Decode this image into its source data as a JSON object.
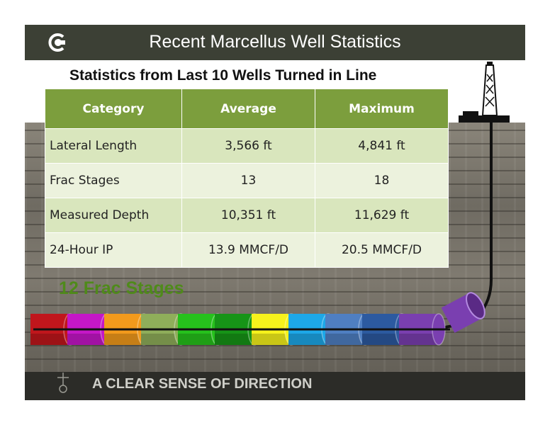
{
  "slide": {
    "title": "Recent Marcellus Well Statistics",
    "subtitle": "Statistics from Last 10 Wells Turned in Line",
    "stage_label": "12 Frac Stages",
    "tagline": "A CLEAR SENSE OF DIRECTION"
  },
  "table": {
    "headers": [
      "Category",
      "Average",
      "Maximum"
    ],
    "rows": [
      {
        "category": "Lateral Length",
        "average": "3,566 ft",
        "maximum": "4,841 ft"
      },
      {
        "category": "Frac Stages",
        "average": "13",
        "maximum": "18"
      },
      {
        "category": "Measured Depth",
        "average": "10,351 ft",
        "maximum": "11,629 ft"
      },
      {
        "category": "24-Hour IP",
        "average": "13.9 MMCF/D",
        "maximum": "20.5 MMCF/D"
      }
    ]
  },
  "colors": {
    "header_green": "#7c9e3d",
    "stage_colors": [
      "#c0161c",
      "#c517c7",
      "#f29a1c",
      "#8fae5a",
      "#26c11c",
      "#169417",
      "#f6f21c",
      "#1da8e8",
      "#4f7fc2",
      "#2c5aa0",
      "#7a3fb0",
      "#7a3fb0"
    ]
  }
}
